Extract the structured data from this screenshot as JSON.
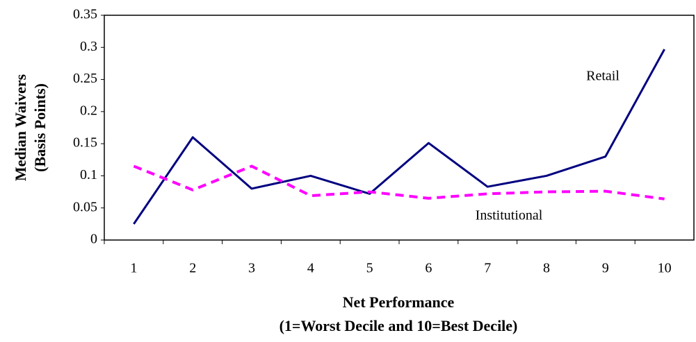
{
  "chart_data": {
    "type": "line",
    "y_label_lines": [
      "Median Waivers",
      "(Basis Points)"
    ],
    "x_label_lines": [
      "Net Performance",
      "(1=Worst Decile and 10=Best Decile)"
    ],
    "categories": [
      "1",
      "2",
      "3",
      "4",
      "5",
      "6",
      "7",
      "8",
      "9",
      "10"
    ],
    "series": [
      {
        "name": "Retail",
        "color": "#000080",
        "dashed": false,
        "values": [
          0.025,
          0.16,
          0.08,
          0.1,
          0.072,
          0.151,
          0.083,
          0.1,
          0.13,
          0.297
        ]
      },
      {
        "name": "Institutional",
        "color": "#ff00ff",
        "dashed": true,
        "values": [
          0.115,
          0.078,
          0.115,
          0.069,
          0.075,
          0.065,
          0.072,
          0.075,
          0.076,
          0.064
        ]
      }
    ],
    "ylim": [
      0,
      0.35
    ],
    "yticks": [
      0,
      0.05,
      0.1,
      0.15,
      0.2,
      0.25,
      0.3,
      0.35
    ],
    "grid": false
  }
}
